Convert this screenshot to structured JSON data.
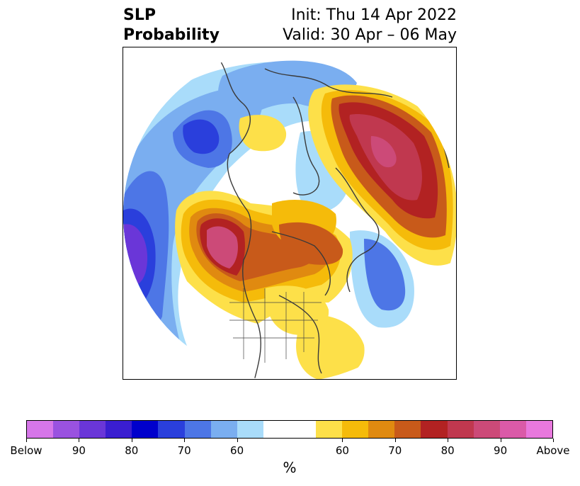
{
  "title": {
    "left_line1": "SLP",
    "left_line2": "Probability",
    "right_line1": "Init: Thu 14 Apr 2022",
    "right_line2": "Valid: 30 Apr – 06 May"
  },
  "colorbar": {
    "unit": "%",
    "tick_labels": [
      "Below",
      "90",
      "80",
      "70",
      "60",
      "60",
      "70",
      "80",
      "90",
      "Above"
    ],
    "colors": [
      "#d676e9",
      "#9a52e0",
      "#6a36d8",
      "#3a1ed0",
      "#0000cc",
      "#2a3fdc",
      "#4d76e6",
      "#7aaef0",
      "#a9dcfa",
      "#ffffff",
      "#ffffff",
      "#fde049",
      "#f5bb0a",
      "#e08a10",
      "#c85a1a",
      "#b22222",
      "#c0384f",
      "#cc4a78",
      "#da5aa8",
      "#e878dd"
    ]
  },
  "map": {
    "type": "north-polar-stereographic",
    "field": "SLP tercile probability",
    "colors": {
      "above_60": "#fde049",
      "above_70": "#f5bb0a",
      "above_75": "#e08a10",
      "above_80": "#c85a1a",
      "above_85": "#b22222",
      "above_90": "#c0384f",
      "above_95": "#cc4a78",
      "below_60": "#a9dcfa",
      "below_65": "#7aaef0",
      "below_70": "#4d76e6",
      "below_75": "#2a3fdc",
      "below_80": "#0000cc",
      "below_85": "#3a1ed0",
      "below_90": "#6a36d8"
    }
  }
}
